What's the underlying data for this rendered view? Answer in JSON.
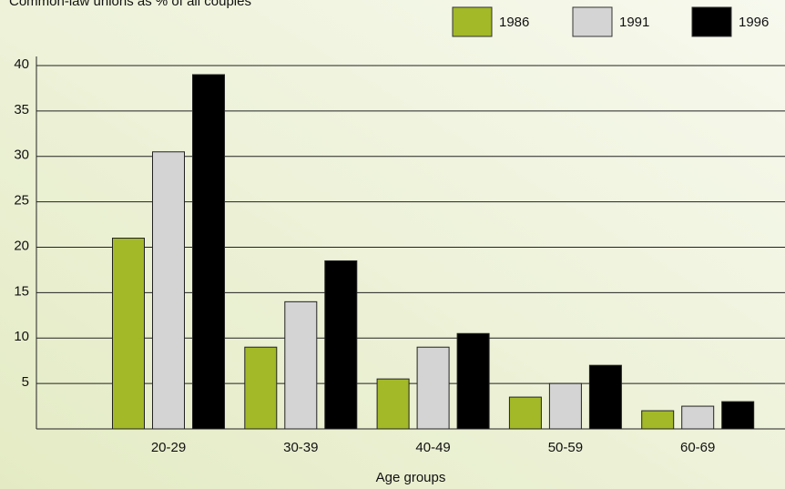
{
  "chart_data": {
    "type": "bar",
    "title": "Common-law unions as % of all couples",
    "x_label": "Age groups",
    "categories": [
      "20-29",
      "30-39",
      "40-49",
      "50-59",
      "60-69"
    ],
    "series": [
      {
        "name": "1986",
        "color": "#a3b927",
        "values": [
          21,
          9,
          5.5,
          3.5,
          2
        ]
      },
      {
        "name": "1991",
        "color": "#d4d4d4",
        "values": [
          30.5,
          14,
          9,
          5,
          2.5
        ]
      },
      {
        "name": "1996",
        "color": "#000000",
        "values": [
          39,
          18.5,
          10.5,
          7,
          3
        ]
      }
    ],
    "ylim": [
      0,
      40
    ],
    "yticks": [
      5,
      10,
      15,
      20,
      25,
      30,
      35,
      40
    ],
    "grid": true
  }
}
